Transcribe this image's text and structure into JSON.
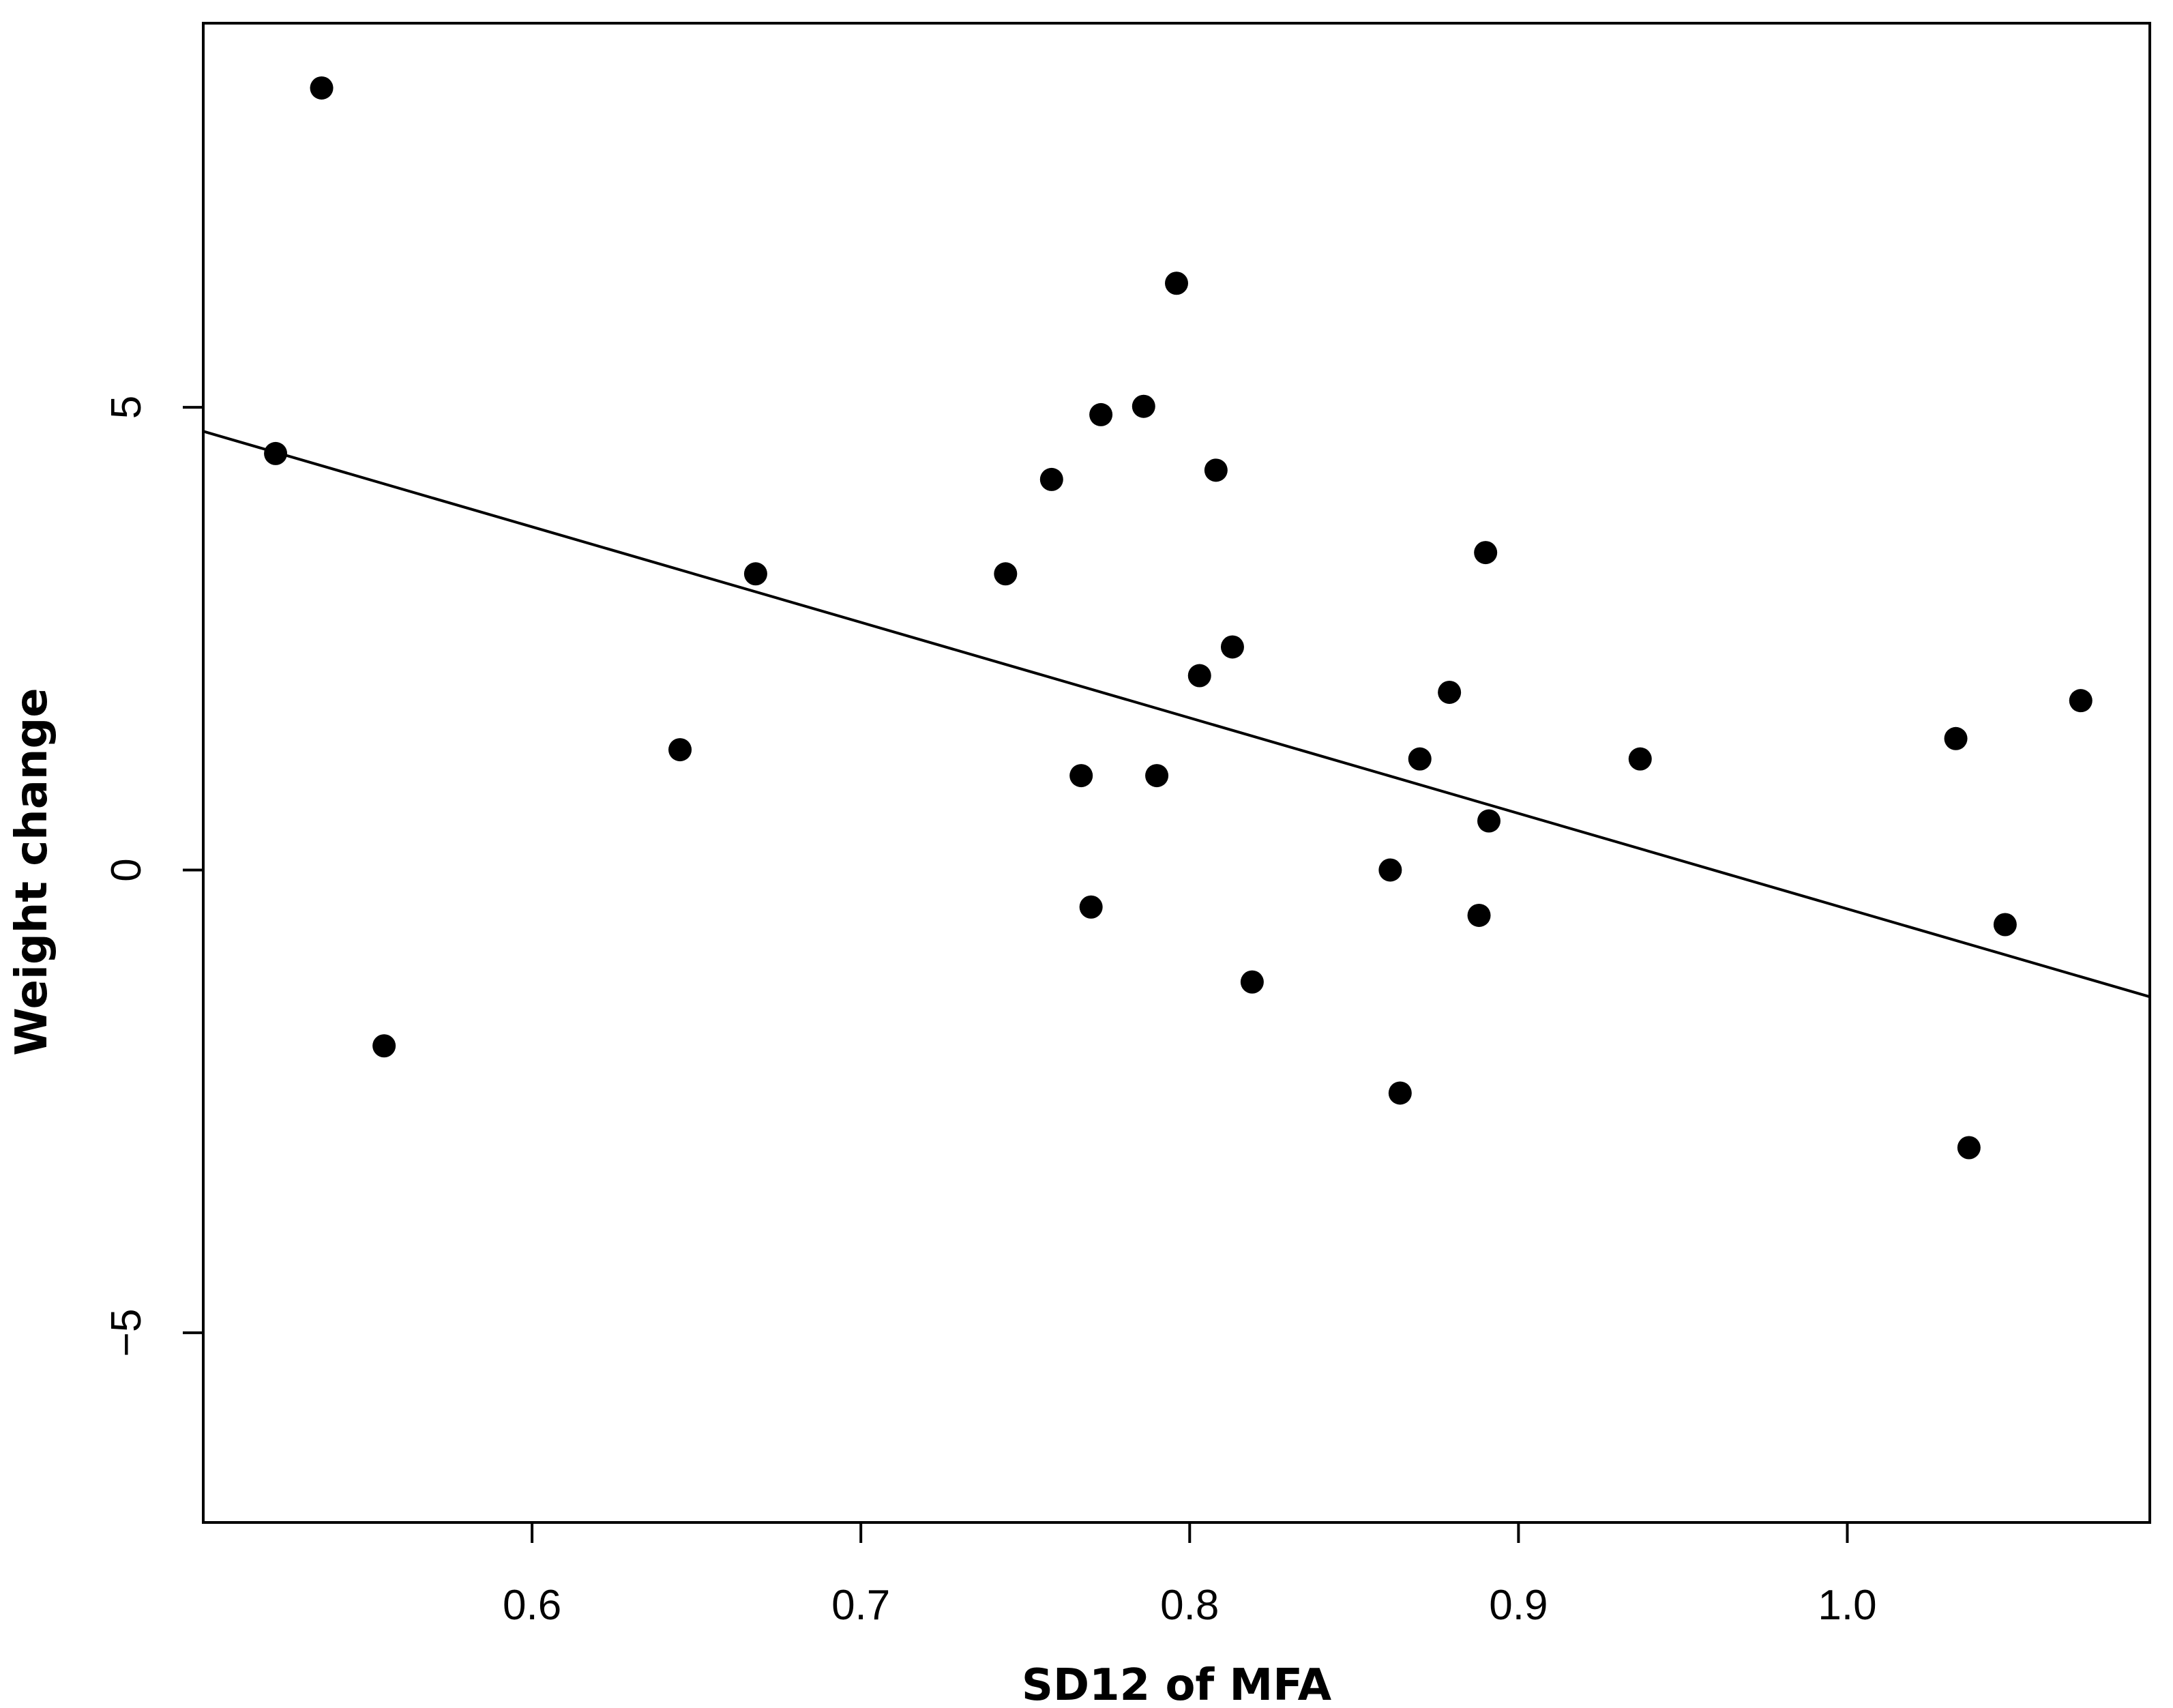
{
  "chart_data": {
    "type": "scatter",
    "title": "",
    "xlabel": "SD12 of MFA",
    "ylabel": "Weight change",
    "xlim": [
      0.5,
      1.092
    ],
    "ylim": [
      -7.05,
      9.15
    ],
    "xticks": [
      0.6,
      0.7,
      0.8,
      0.9,
      1.0
    ],
    "xtick_labels": [
      "0.6",
      "0.7",
      "0.8",
      "0.9",
      "1.0"
    ],
    "yticks": [
      -5,
      0,
      5
    ],
    "ytick_labels": [
      "−5",
      "0",
      "5"
    ],
    "grid": false,
    "legend": "none",
    "colors": {
      "points": "#000000",
      "line": "#000000",
      "axes": "#000000"
    },
    "points": [
      {
        "x": 0.522,
        "y": 4.5
      },
      {
        "x": 0.536,
        "y": 8.45
      },
      {
        "x": 0.555,
        "y": -1.9
      },
      {
        "x": 0.645,
        "y": 1.3
      },
      {
        "x": 0.668,
        "y": 3.2
      },
      {
        "x": 0.744,
        "y": 3.2
      },
      {
        "x": 0.758,
        "y": 4.22
      },
      {
        "x": 0.767,
        "y": 1.02
      },
      {
        "x": 0.77,
        "y": -0.4
      },
      {
        "x": 0.773,
        "y": 4.92
      },
      {
        "x": 0.786,
        "y": 5.01
      },
      {
        "x": 0.79,
        "y": 1.02
      },
      {
        "x": 0.796,
        "y": 6.34
      },
      {
        "x": 0.803,
        "y": 2.1
      },
      {
        "x": 0.808,
        "y": 4.32
      },
      {
        "x": 0.813,
        "y": 2.41
      },
      {
        "x": 0.819,
        "y": -1.21
      },
      {
        "x": 0.861,
        "y": 0.0
      },
      {
        "x": 0.864,
        "y": -2.41
      },
      {
        "x": 0.87,
        "y": 1.2
      },
      {
        "x": 0.879,
        "y": 1.92
      },
      {
        "x": 0.888,
        "y": -0.49
      },
      {
        "x": 0.89,
        "y": 3.43
      },
      {
        "x": 0.891,
        "y": 0.53
      },
      {
        "x": 0.937,
        "y": 1.2
      },
      {
        "x": 1.033,
        "y": 1.42
      },
      {
        "x": 1.037,
        "y": -3.0
      },
      {
        "x": 1.048,
        "y": -0.59
      },
      {
        "x": 1.071,
        "y": 1.83
      }
    ],
    "fit_line": {
      "x": [
        0.5,
        1.092
      ],
      "y": [
        4.74,
        -1.37
      ]
    }
  }
}
